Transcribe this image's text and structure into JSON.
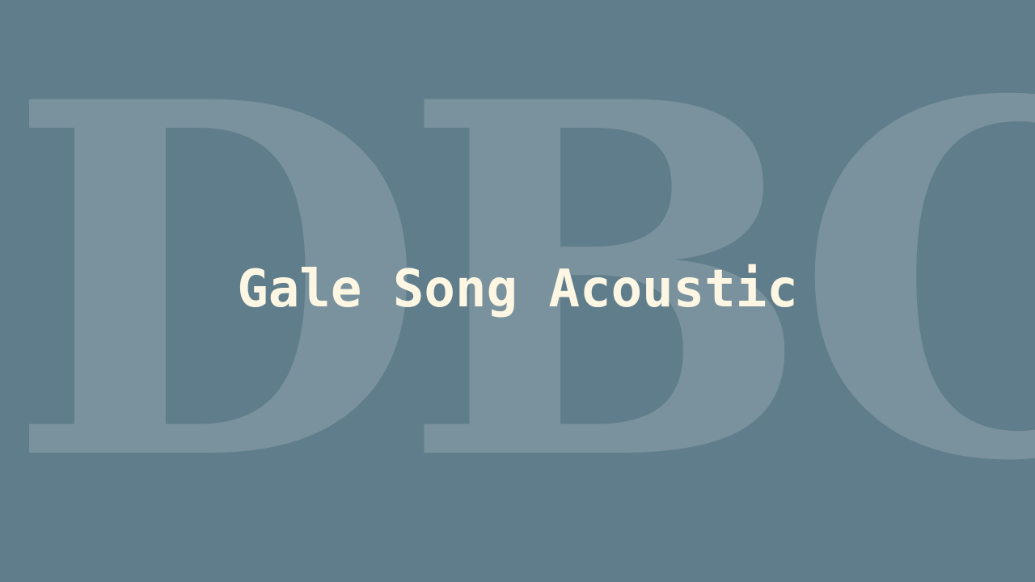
{
  "backdrop": {
    "letters": "DBC"
  },
  "title": "Gale Song Acoustic",
  "colors": {
    "background": "#607d8b",
    "title_text": "#fdf6e3",
    "backdrop_letters": "#ffffff"
  }
}
